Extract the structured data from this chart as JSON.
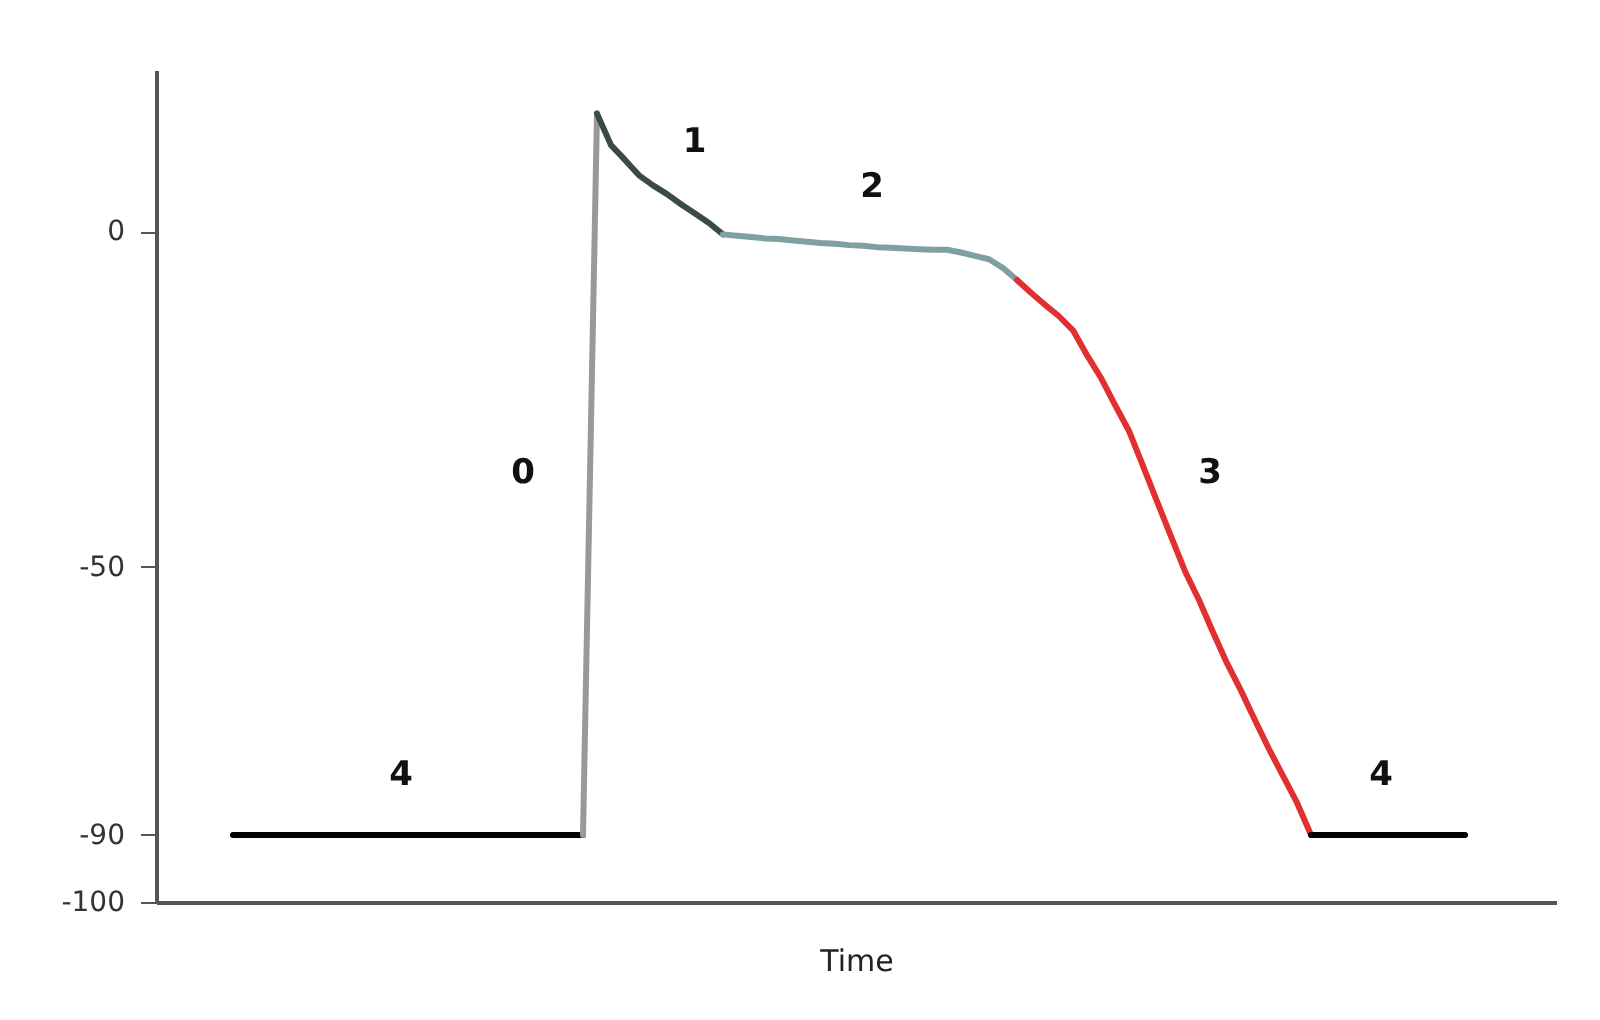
{
  "chart_data": {
    "type": "line",
    "xlabel": "Time",
    "ylim": [
      -100,
      24
    ],
    "yticks": [
      -100,
      -90,
      -50,
      0
    ],
    "grid": false,
    "marker": "none",
    "line_style": "solid",
    "categories": [
      null,
      null,
      null,
      null,
      null,
      null,
      null,
      null,
      null,
      null,
      null,
      null,
      null,
      null,
      null,
      null,
      null,
      null,
      null,
      null,
      null,
      null,
      null,
      null,
      null,
      null,
      null,
      null,
      null,
      null,
      null,
      null,
      null,
      null,
      null,
      null,
      null,
      null,
      null,
      null,
      null,
      null,
      null,
      null,
      null,
      null,
      null,
      null,
      null,
      null,
      null,
      null,
      null,
      null,
      null,
      null,
      null,
      null,
      null,
      null,
      null,
      null,
      null,
      null,
      null,
      null,
      null,
      null,
      null,
      null,
      null,
      null,
      null,
      null,
      null,
      null,
      null,
      null,
      null,
      null,
      null,
      null,
      null,
      null,
      null,
      null,
      null,
      null,
      null,
      null,
      null,
      null,
      null,
      null,
      null,
      null,
      null,
      null,
      null,
      null
    ],
    "series": [
      {
        "color": "#000000",
        "values": [
          null,
          null,
          null,
          null,
          null,
          -90,
          -90,
          -90,
          -90,
          -90,
          -90,
          -90,
          -90,
          -90,
          -90,
          -90,
          -90,
          -90,
          -90,
          -90,
          -90,
          -90,
          -90,
          -90,
          -90,
          -90,
          -90,
          -90,
          -90,
          -90,
          -90,
          null,
          null,
          null,
          null,
          null,
          null,
          null,
          null,
          null,
          null,
          null,
          null,
          null,
          null,
          null,
          null,
          null,
          null,
          null,
          null,
          null,
          null,
          null,
          null,
          null,
          null,
          null,
          null,
          null,
          null,
          null,
          null,
          null,
          null,
          null,
          null,
          null,
          null,
          null,
          null,
          null,
          null,
          null,
          null,
          null,
          null,
          null,
          null,
          null,
          null,
          null,
          null,
          null,
          null,
          null,
          null,
          null,
          null,
          null,
          null,
          null,
          null,
          null,
          null,
          null,
          null,
          null,
          null,
          null
        ]
      },
      {
        "color": "#999999",
        "values": [
          null,
          null,
          null,
          null,
          null,
          null,
          null,
          null,
          null,
          null,
          null,
          null,
          null,
          null,
          null,
          null,
          null,
          null,
          null,
          null,
          null,
          null,
          null,
          null,
          null,
          null,
          null,
          null,
          null,
          null,
          -90,
          17.5,
          null,
          null,
          null,
          null,
          null,
          null,
          null,
          null,
          null,
          null,
          null,
          null,
          null,
          null,
          null,
          null,
          null,
          null,
          null,
          null,
          null,
          null,
          null,
          null,
          null,
          null,
          null,
          null,
          null,
          null,
          null,
          null,
          null,
          null,
          null,
          null,
          null,
          null,
          null,
          null,
          null,
          null,
          null,
          null,
          null,
          null,
          null,
          null,
          null,
          null,
          null,
          null,
          null,
          null,
          null,
          null,
          null,
          null,
          null,
          null,
          null,
          null,
          null,
          null,
          null,
          null,
          null,
          null
        ]
      },
      {
        "color": "#3a4a48",
        "values": [
          null,
          null,
          null,
          null,
          null,
          null,
          null,
          null,
          null,
          null,
          null,
          null,
          null,
          null,
          null,
          null,
          null,
          null,
          null,
          null,
          null,
          null,
          null,
          null,
          null,
          null,
          null,
          null,
          null,
          null,
          null,
          17.5,
          12.8,
          10.6,
          8.3,
          6.8,
          5.5,
          4.0,
          2.6,
          1.2,
          -0.5,
          null,
          null,
          null,
          null,
          null,
          null,
          null,
          null,
          null,
          null,
          null,
          null,
          null,
          null,
          null,
          null,
          null,
          null,
          null,
          null,
          null,
          null,
          null,
          null,
          null,
          null,
          null,
          null,
          null,
          null,
          null,
          null,
          null,
          null,
          null,
          null,
          null,
          null,
          null,
          null,
          null,
          null,
          null,
          null,
          null,
          null,
          null,
          null,
          null,
          null,
          null,
          null,
          null,
          null,
          null,
          null,
          null,
          null,
          null
        ]
      },
      {
        "color": "#7fa0a0",
        "values": [
          null,
          null,
          null,
          null,
          null,
          null,
          null,
          null,
          null,
          null,
          null,
          null,
          null,
          null,
          null,
          null,
          null,
          null,
          null,
          null,
          null,
          null,
          null,
          null,
          null,
          null,
          null,
          null,
          null,
          null,
          null,
          null,
          null,
          null,
          null,
          null,
          null,
          null,
          null,
          null,
          -0.5,
          -0.7,
          -0.9,
          -1.1,
          -1.2,
          -1.4,
          -1.6,
          -1.8,
          -1.9,
          -2.1,
          -2.2,
          -2.4,
          -2.5,
          -2.6,
          -2.7,
          -2.8,
          -2.8,
          -3.2,
          -3.7,
          -4.2,
          -5.5,
          -7.3,
          null,
          null,
          null,
          null,
          null,
          null,
          null,
          null,
          null,
          null,
          null,
          null,
          null,
          null,
          null,
          null,
          null,
          null,
          null,
          null,
          null,
          null,
          null,
          null,
          null,
          null,
          null,
          null,
          null,
          null,
          null,
          null,
          null,
          null,
          null,
          null,
          null,
          null
        ]
      },
      {
        "color": "#e03030",
        "values": [
          null,
          null,
          null,
          null,
          null,
          null,
          null,
          null,
          null,
          null,
          null,
          null,
          null,
          null,
          null,
          null,
          null,
          null,
          null,
          null,
          null,
          null,
          null,
          null,
          null,
          null,
          null,
          null,
          null,
          null,
          null,
          null,
          null,
          null,
          null,
          null,
          null,
          null,
          null,
          null,
          null,
          null,
          null,
          null,
          null,
          null,
          null,
          null,
          null,
          null,
          null,
          null,
          null,
          null,
          null,
          null,
          null,
          null,
          null,
          null,
          null,
          -7.3,
          -9.2,
          -11,
          -12.7,
          -14.8,
          -18.5,
          -21.9,
          -25.9,
          -29.8,
          -35,
          -40.3,
          -45.5,
          -50.7,
          -55,
          -59.8,
          -64.4,
          -68.5,
          -72.9,
          -77.2,
          -81.2,
          -85.2,
          -90,
          null,
          null,
          null,
          null,
          null,
          null,
          null,
          null,
          null,
          null,
          null,
          null,
          null,
          null,
          null,
          null,
          null
        ]
      },
      {
        "color": "#000000",
        "values": [
          null,
          null,
          null,
          null,
          null,
          null,
          null,
          null,
          null,
          null,
          null,
          null,
          null,
          null,
          null,
          null,
          null,
          null,
          null,
          null,
          null,
          null,
          null,
          null,
          null,
          null,
          null,
          null,
          null,
          null,
          null,
          null,
          null,
          null,
          null,
          null,
          null,
          null,
          null,
          null,
          null,
          null,
          null,
          null,
          null,
          null,
          null,
          null,
          null,
          null,
          null,
          null,
          null,
          null,
          null,
          null,
          null,
          null,
          null,
          null,
          null,
          null,
          null,
          null,
          null,
          null,
          null,
          null,
          null,
          null,
          null,
          null,
          null,
          null,
          null,
          null,
          null,
          null,
          null,
          null,
          null,
          null,
          -90,
          -90,
          -90,
          -90,
          -90,
          -90,
          -90,
          -90,
          -90,
          -90,
          -90,
          -90,
          null,
          null,
          null,
          null,
          null,
          null
        ]
      }
    ],
    "annotations": [
      "4",
      "0",
      "1",
      "2",
      "3",
      "4"
    ]
  }
}
